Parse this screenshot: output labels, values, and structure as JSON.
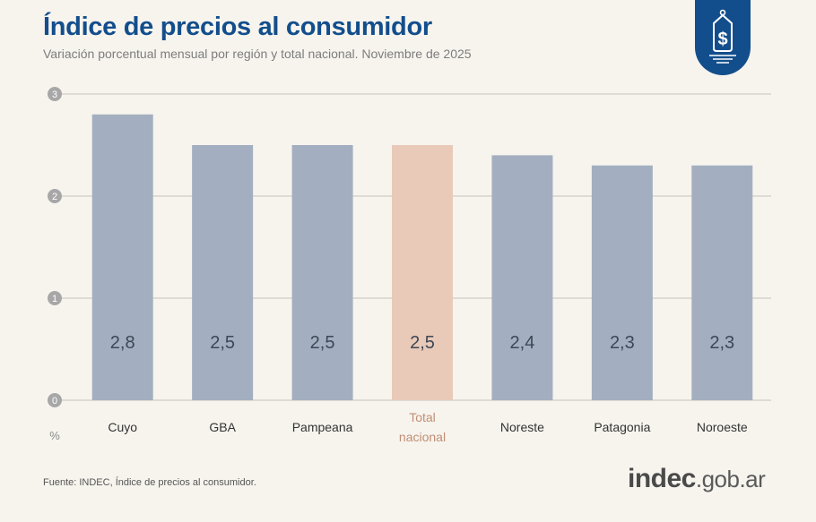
{
  "header": {
    "title": "Índice de precios al consumidor",
    "subtitle": "Variación porcentual mensual por región y total nacional. Noviembre de 2025"
  },
  "badge": {
    "icon": "price-tag-dollar-icon",
    "color": "#134e8c"
  },
  "chart_data": {
    "type": "bar",
    "categories": [
      "Cuyo",
      "GBA",
      "Pampeana",
      "Total nacional",
      "Noreste",
      "Patagonia",
      "Noroeste"
    ],
    "category_lines": [
      [
        "Cuyo"
      ],
      [
        "GBA"
      ],
      [
        "Pampeana"
      ],
      [
        "Total",
        "nacional"
      ],
      [
        "Noreste"
      ],
      [
        "Patagonia"
      ],
      [
        "Noroeste"
      ]
    ],
    "values": [
      2.8,
      2.5,
      2.5,
      2.5,
      2.4,
      2.3,
      2.3
    ],
    "value_labels": [
      "2,8",
      "2,5",
      "2,5",
      "2,5",
      "2,4",
      "2,3",
      "2,3"
    ],
    "highlight_index": 3,
    "ylabel": "%",
    "ylim": [
      0,
      3
    ],
    "yticks": [
      0,
      1,
      2,
      3
    ],
    "grid": true,
    "colors": {
      "bar": "#a3afc0",
      "highlight": "#e9c9b8",
      "label": "#3c4756",
      "highlight_label": "#c08e74"
    }
  },
  "footer": {
    "source": "Fuente: INDEC, Índice de precios al consumidor.",
    "logo_strong": "indec",
    "logo_light": ".gob.ar"
  }
}
